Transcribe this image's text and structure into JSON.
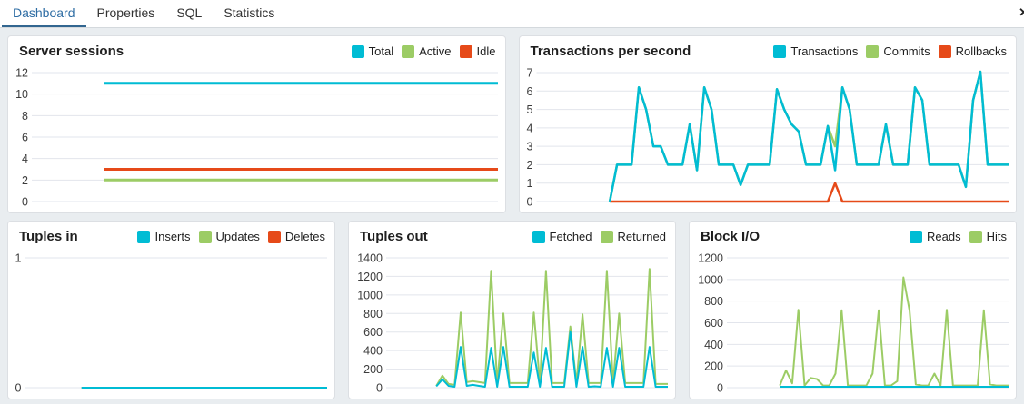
{
  "tabs": [
    {
      "label": "Dashboard",
      "active": true
    },
    {
      "label": "Properties",
      "active": false
    },
    {
      "label": "SQL",
      "active": false
    },
    {
      "label": "Statistics",
      "active": false
    }
  ],
  "close_label": "✕",
  "colors": {
    "cyan": "#00BCD4",
    "green": "#9CCC65",
    "red": "#E64A19",
    "tab_active_text": "#2e6da4",
    "tab_underline": "#326690",
    "gridline": "#e2e5ec",
    "tick_label": "#3c3c3c"
  },
  "chart_data": [
    {
      "type": "line",
      "title": "Server sessions",
      "y_ticks": [
        0,
        2,
        4,
        6,
        8,
        10,
        12
      ],
      "start_frac": 0.15,
      "line_width": 3,
      "legend": [
        {
          "label": "Total",
          "color": "#00BCD4"
        },
        {
          "label": "Active",
          "color": "#9CCC65"
        },
        {
          "label": "Idle",
          "color": "#E64A19"
        }
      ],
      "series": [
        {
          "name": "Total",
          "color": "#00BCD4",
          "values": [
            11,
            11,
            11,
            11,
            11,
            11,
            11,
            11,
            11,
            11
          ]
        },
        {
          "name": "Active",
          "color": "#9CCC65",
          "values": [
            2,
            2,
            2,
            2,
            2,
            2,
            2,
            2,
            2,
            2
          ]
        },
        {
          "name": "Idle",
          "color": "#E64A19",
          "values": [
            3,
            3,
            3,
            3,
            3,
            3,
            3,
            3,
            3,
            3
          ]
        }
      ]
    },
    {
      "type": "line",
      "title": "Transactions per second",
      "y_ticks": [
        0,
        1,
        2,
        3,
        4,
        5,
        6,
        7
      ],
      "start_frac": 0.15,
      "line_width": 2.5,
      "legend": [
        {
          "label": "Transactions",
          "color": "#00BCD4"
        },
        {
          "label": "Commits",
          "color": "#9CCC65"
        },
        {
          "label": "Rollbacks",
          "color": "#E64A19"
        }
      ],
      "series": [
        {
          "name": "Rollbacks",
          "color": "#E64A19",
          "values": [
            0,
            0,
            0,
            0,
            0,
            0,
            0,
            0,
            0,
            0,
            0,
            0,
            0,
            0,
            0,
            0,
            0,
            0,
            0,
            0,
            0,
            0,
            0,
            0,
            0,
            0,
            0,
            0,
            0,
            0,
            0,
            1,
            0,
            0,
            0,
            0,
            0,
            0,
            0,
            0,
            0,
            0,
            0,
            0,
            0,
            0,
            0,
            0,
            0,
            0,
            0,
            0,
            0,
            0,
            0,
            0
          ]
        },
        {
          "name": "Commits",
          "color": "#9CCC65",
          "values": [
            0,
            2,
            2,
            2,
            6.2,
            5,
            3,
            3,
            2,
            2,
            2,
            4.2,
            1.7,
            6.2,
            5,
            2,
            2,
            2,
            0.9,
            2,
            2,
            2,
            2,
            6.1,
            5,
            4.2,
            3.8,
            2,
            2,
            2,
            4.1,
            3,
            6.2,
            5,
            2,
            2,
            2,
            2,
            4.2,
            2,
            2,
            2,
            6.2,
            5.5,
            2,
            2,
            2,
            2,
            2,
            0.8,
            5.5,
            7.05,
            2,
            2,
            2,
            2
          ]
        },
        {
          "name": "Transactions",
          "color": "#00BCD4",
          "values": [
            0,
            2,
            2,
            2,
            6.2,
            5,
            3,
            3,
            2,
            2,
            2,
            4.2,
            1.7,
            6.2,
            5,
            2,
            2,
            2,
            0.9,
            2,
            2,
            2,
            2,
            6.1,
            5,
            4.2,
            3.8,
            2,
            2,
            2,
            4.1,
            1.7,
            6.2,
            5,
            2,
            2,
            2,
            2,
            4.2,
            2,
            2,
            2,
            6.2,
            5.5,
            2,
            2,
            2,
            2,
            2,
            0.8,
            5.5,
            7.05,
            2,
            2,
            2,
            2
          ]
        }
      ]
    },
    {
      "type": "line",
      "title": "Tuples in",
      "y_ticks": [
        0,
        1
      ],
      "start_frac": 0.18,
      "line_width": 2,
      "legend": [
        {
          "label": "Inserts",
          "color": "#00BCD4"
        },
        {
          "label": "Updates",
          "color": "#9CCC65"
        },
        {
          "label": "Deletes",
          "color": "#E64A19"
        }
      ],
      "series": [
        {
          "name": "Deletes",
          "color": "#E64A19",
          "values": [
            0,
            0,
            0,
            0,
            0,
            0,
            0,
            0,
            0,
            0
          ]
        },
        {
          "name": "Updates",
          "color": "#9CCC65",
          "values": [
            0,
            0,
            0,
            0,
            0,
            0,
            0,
            0,
            0,
            0
          ]
        },
        {
          "name": "Inserts",
          "color": "#00BCD4",
          "values": [
            0,
            0,
            0,
            0,
            0,
            0,
            0,
            0,
            0,
            0
          ]
        }
      ]
    },
    {
      "type": "line",
      "title": "Tuples out",
      "y_ticks": [
        0,
        200,
        400,
        600,
        800,
        1000,
        1200,
        1400
      ],
      "start_frac": 0.17,
      "line_width": 2,
      "legend": [
        {
          "label": "Fetched",
          "color": "#00BCD4"
        },
        {
          "label": "Returned",
          "color": "#9CCC65"
        }
      ],
      "series": [
        {
          "name": "Returned",
          "color": "#9CCC65",
          "values": [
            20,
            130,
            40,
            30,
            810,
            60,
            70,
            60,
            50,
            1260,
            50,
            800,
            50,
            50,
            50,
            50,
            810,
            50,
            1260,
            50,
            50,
            50,
            660,
            50,
            790,
            50,
            50,
            50,
            1260,
            50,
            800,
            50,
            50,
            50,
            50,
            1280,
            40,
            40,
            40
          ]
        },
        {
          "name": "Fetched",
          "color": "#00BCD4",
          "values": [
            15,
            90,
            20,
            10,
            440,
            20,
            30,
            20,
            10,
            430,
            10,
            440,
            10,
            10,
            10,
            10,
            380,
            10,
            430,
            10,
            10,
            10,
            600,
            10,
            440,
            10,
            15,
            10,
            430,
            10,
            430,
            10,
            10,
            10,
            10,
            440,
            10,
            10,
            10
          ]
        }
      ]
    },
    {
      "type": "line",
      "title": "Block I/O",
      "y_ticks": [
        0,
        200,
        400,
        600,
        800,
        1000,
        1200
      ],
      "start_frac": 0.18,
      "line_width": 2,
      "legend": [
        {
          "label": "Reads",
          "color": "#00BCD4"
        },
        {
          "label": "Hits",
          "color": "#9CCC65"
        }
      ],
      "series": [
        {
          "name": "Hits",
          "color": "#9CCC65",
          "values": [
            20,
            160,
            40,
            720,
            20,
            90,
            80,
            20,
            20,
            130,
            715,
            20,
            20,
            20,
            20,
            130,
            715,
            20,
            20,
            60,
            1020,
            710,
            30,
            20,
            20,
            130,
            20,
            720,
            20,
            20,
            20,
            20,
            20,
            715,
            30,
            20,
            20,
            20
          ]
        },
        {
          "name": "Reads",
          "color": "#00BCD4",
          "values": [
            8,
            8,
            8,
            8,
            8,
            8,
            8,
            8,
            8,
            8,
            8,
            8,
            8,
            8,
            8,
            8,
            8,
            8,
            8,
            8,
            8,
            8,
            8,
            8,
            8,
            8,
            8,
            8,
            8,
            8,
            8,
            8,
            8,
            8,
            8,
            8,
            8,
            8
          ]
        }
      ]
    }
  ]
}
